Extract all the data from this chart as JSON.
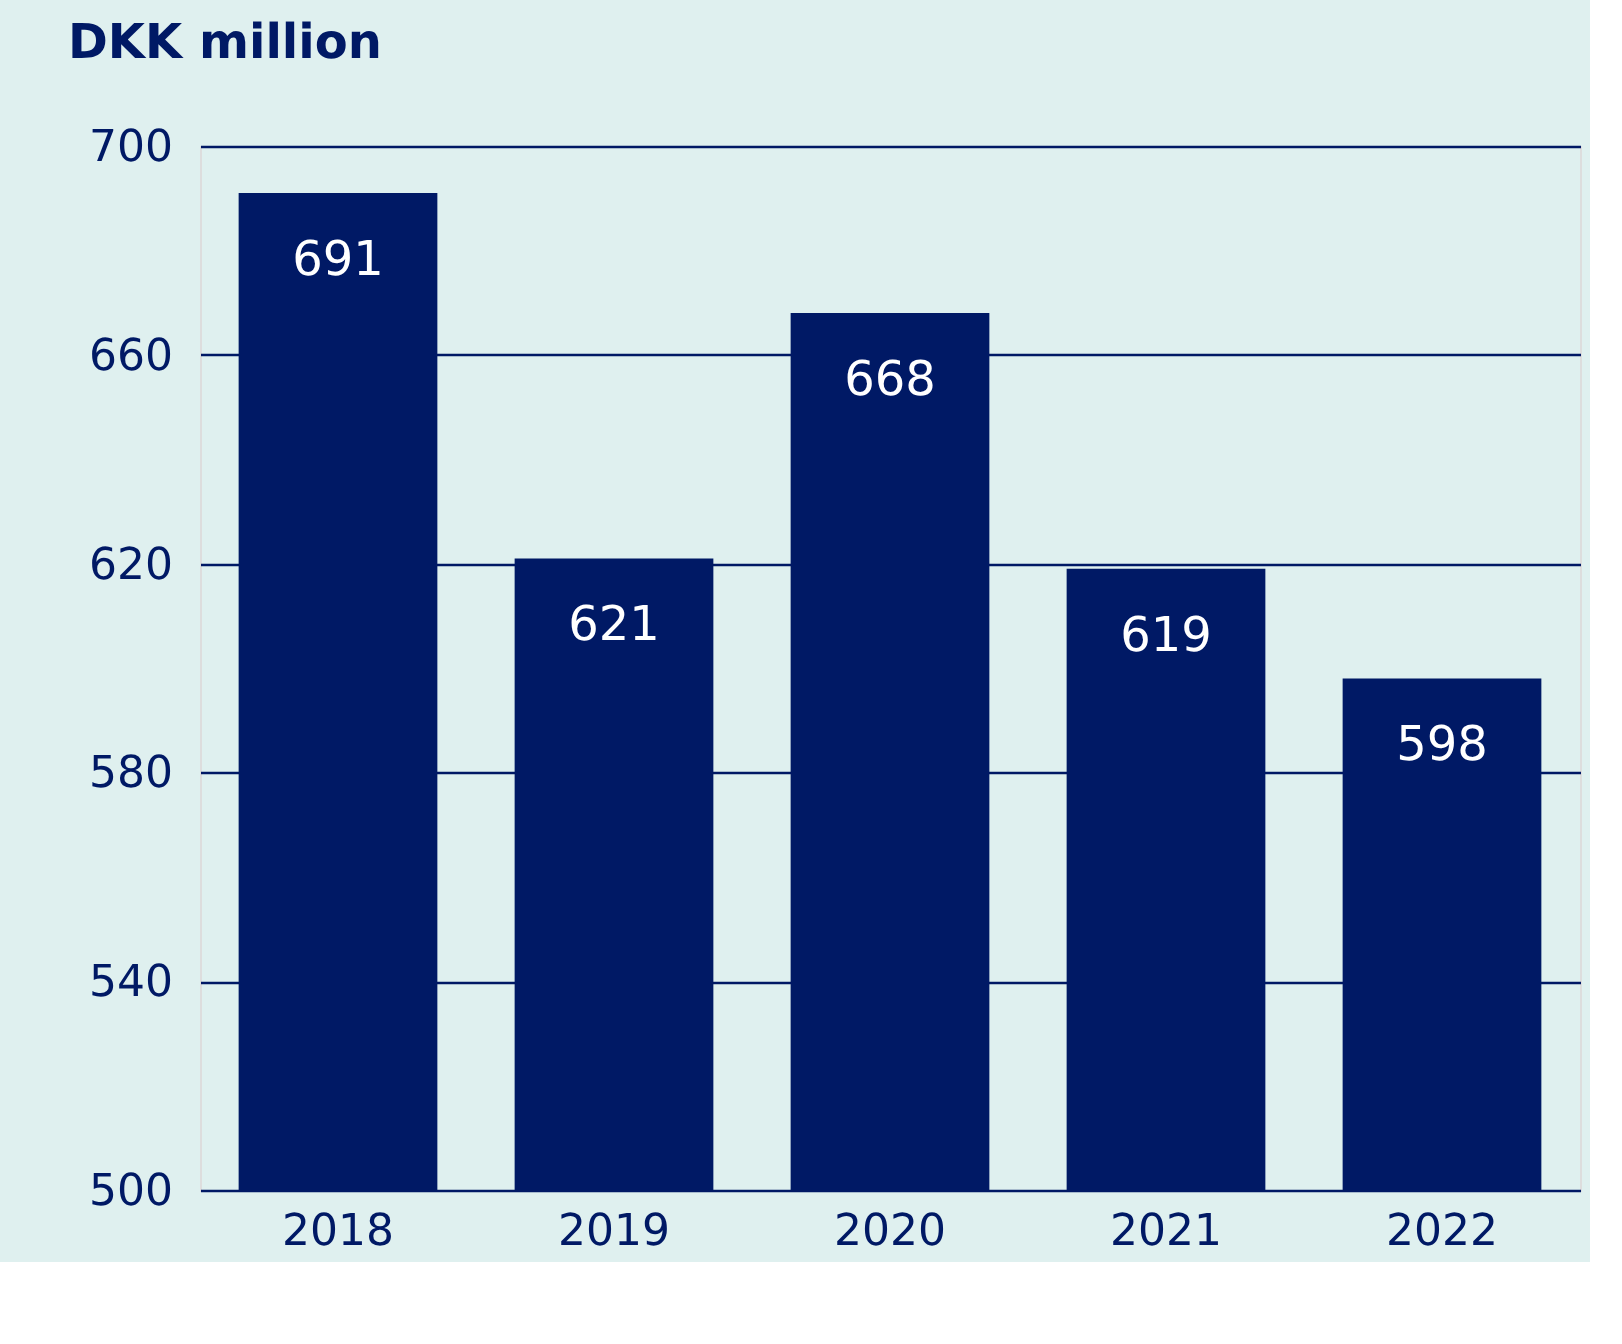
{
  "chart_data": {
    "type": "bar",
    "title": "DKK million",
    "categories": [
      "2018",
      "2019",
      "2020",
      "2021",
      "2022"
    ],
    "values": [
      691,
      621,
      668,
      619,
      598
    ],
    "color": "#001965",
    "ylim": [
      500,
      700
    ],
    "yticks": [
      500,
      540,
      580,
      620,
      660,
      700
    ],
    "grid": "y",
    "data_labels": true
  }
}
